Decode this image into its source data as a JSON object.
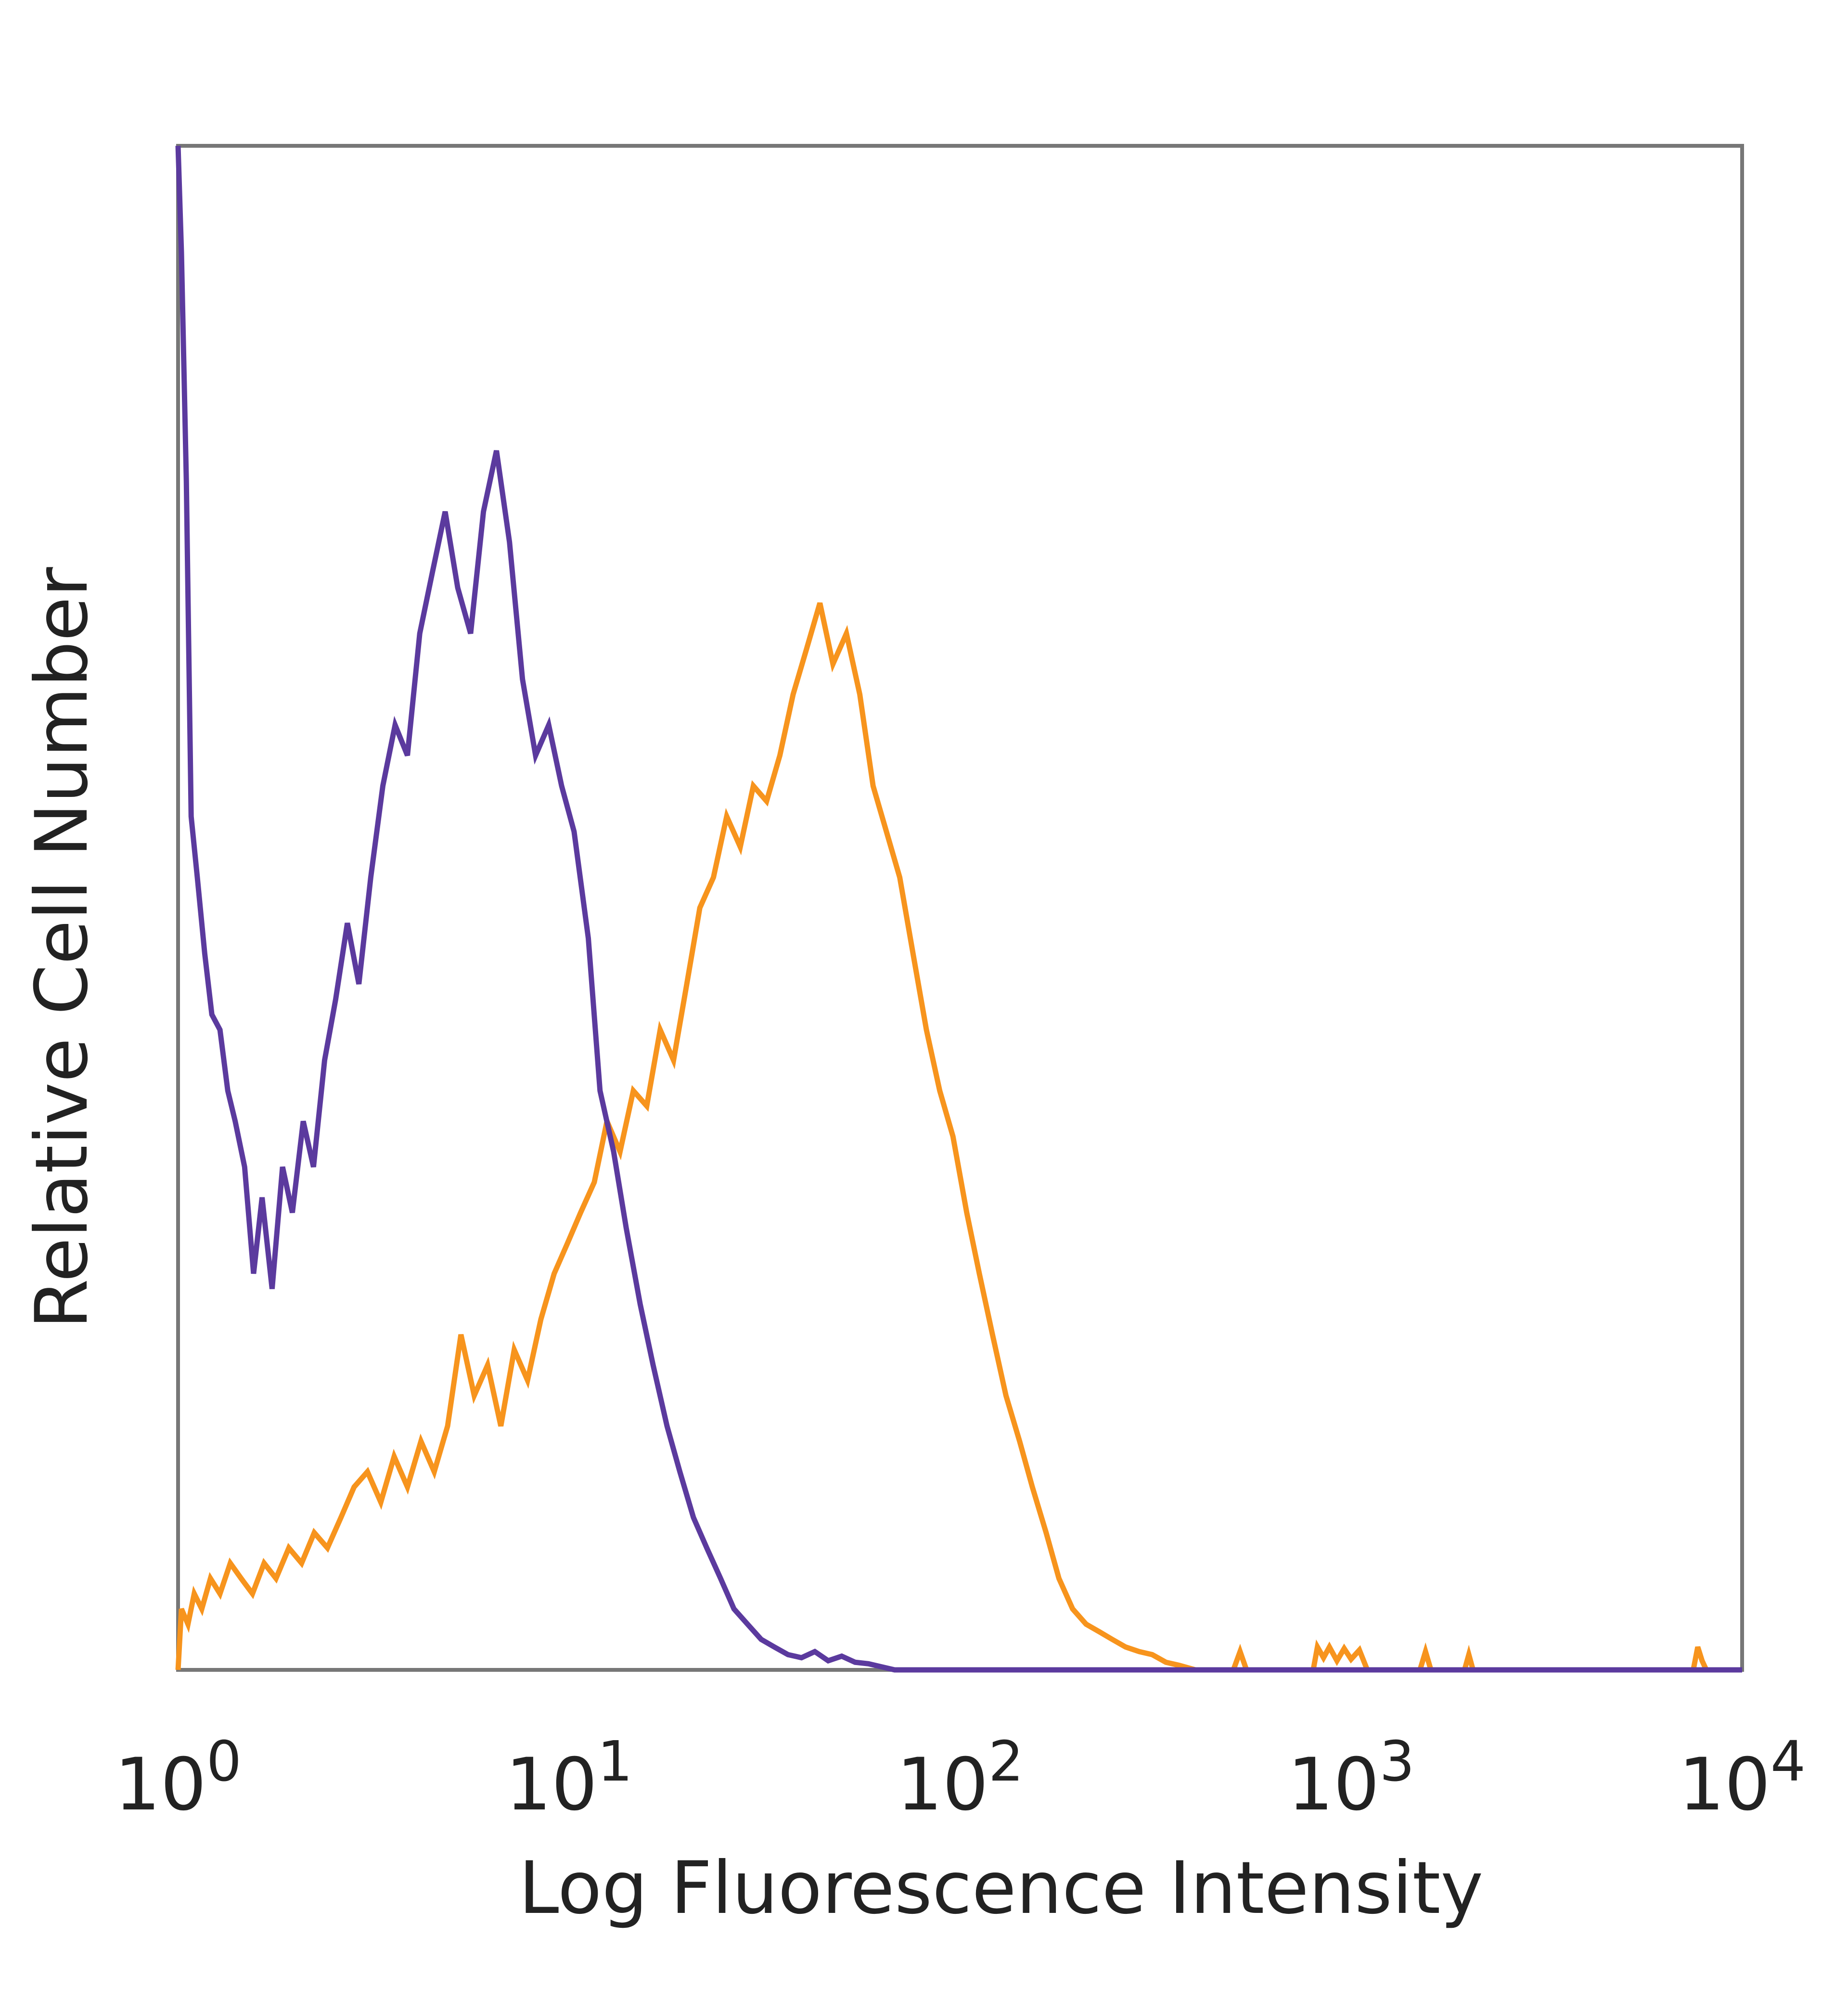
{
  "chart_data": {
    "type": "line",
    "title": "",
    "xlabel": "Log Fluorescence Intensity",
    "ylabel": "Relative Cell Number",
    "x_scale": "log",
    "xlim": [
      1,
      10000
    ],
    "ylim": [
      0,
      100
    ],
    "y_ticks_shown": false,
    "grid": false,
    "legend": "none",
    "x_ticks": [
      {
        "value": 1,
        "base": "10",
        "exp": "0"
      },
      {
        "value": 10,
        "base": "10",
        "exp": "1"
      },
      {
        "value": 100,
        "base": "10",
        "exp": "2"
      },
      {
        "value": 1000,
        "base": "10",
        "exp": "3"
      },
      {
        "value": 10000,
        "base": "10",
        "exp": "4"
      }
    ],
    "series": [
      {
        "color": "#5B3A9E",
        "points": [
          [
            1.0,
            100
          ],
          [
            1.02,
            93
          ],
          [
            1.05,
            78
          ],
          [
            1.08,
            56
          ],
          [
            1.12,
            52
          ],
          [
            1.17,
            47
          ],
          [
            1.22,
            43
          ],
          [
            1.28,
            42
          ],
          [
            1.34,
            38
          ],
          [
            1.4,
            36
          ],
          [
            1.48,
            33
          ],
          [
            1.56,
            26
          ],
          [
            1.64,
            31
          ],
          [
            1.74,
            25
          ],
          [
            1.85,
            33
          ],
          [
            1.96,
            30
          ],
          [
            2.09,
            36
          ],
          [
            2.22,
            33
          ],
          [
            2.37,
            40
          ],
          [
            2.53,
            44
          ],
          [
            2.71,
            49
          ],
          [
            2.9,
            45
          ],
          [
            3.11,
            52
          ],
          [
            3.34,
            58
          ],
          [
            3.59,
            62
          ],
          [
            3.86,
            60
          ],
          [
            4.15,
            68
          ],
          [
            4.47,
            72
          ],
          [
            4.82,
            76
          ],
          [
            5.19,
            71
          ],
          [
            5.6,
            68
          ],
          [
            6.04,
            76
          ],
          [
            6.52,
            80
          ],
          [
            7.04,
            74
          ],
          [
            7.6,
            65
          ],
          [
            8.21,
            60
          ],
          [
            8.87,
            62
          ],
          [
            9.57,
            58
          ],
          [
            10.3,
            55
          ],
          [
            11.2,
            48
          ],
          [
            12.0,
            38
          ],
          [
            13.0,
            34
          ],
          [
            14.0,
            29
          ],
          [
            15.2,
            24
          ],
          [
            16.4,
            20
          ],
          [
            17.8,
            16
          ],
          [
            19.2,
            13
          ],
          [
            20.8,
            10
          ],
          [
            22.5,
            8
          ],
          [
            24.4,
            6
          ],
          [
            26.4,
            4
          ],
          [
            28.6,
            3
          ],
          [
            31.0,
            2
          ],
          [
            33.5,
            1.5
          ],
          [
            36.3,
            1
          ],
          [
            39.3,
            0.8
          ],
          [
            42.5,
            1.2
          ],
          [
            46.0,
            0.6
          ],
          [
            49.8,
            0.9
          ],
          [
            53.9,
            0.5
          ],
          [
            58.3,
            0.4
          ],
          [
            63.0,
            0.2
          ],
          [
            68.0,
            0
          ],
          [
            100,
            0
          ],
          [
            1000,
            0
          ],
          [
            10000,
            0
          ]
        ]
      },
      {
        "color": "#F7941D",
        "points": [
          [
            1.0,
            0
          ],
          [
            1.02,
            4
          ],
          [
            1.06,
            3
          ],
          [
            1.1,
            5
          ],
          [
            1.15,
            4
          ],
          [
            1.21,
            6
          ],
          [
            1.28,
            5
          ],
          [
            1.36,
            7
          ],
          [
            1.45,
            6
          ],
          [
            1.55,
            5
          ],
          [
            1.66,
            7
          ],
          [
            1.78,
            6
          ],
          [
            1.92,
            8
          ],
          [
            2.07,
            7
          ],
          [
            2.23,
            9
          ],
          [
            2.41,
            8
          ],
          [
            2.61,
            10
          ],
          [
            2.82,
            12
          ],
          [
            3.05,
            13
          ],
          [
            3.3,
            11
          ],
          [
            3.57,
            14
          ],
          [
            3.86,
            12
          ],
          [
            4.18,
            15
          ],
          [
            4.52,
            13
          ],
          [
            4.89,
            16
          ],
          [
            5.29,
            22
          ],
          [
            5.72,
            18
          ],
          [
            6.19,
            20
          ],
          [
            6.69,
            16
          ],
          [
            7.24,
            21
          ],
          [
            7.83,
            19
          ],
          [
            8.47,
            23
          ],
          [
            9.16,
            26
          ],
          [
            9.91,
            28
          ],
          [
            10.7,
            30
          ],
          [
            11.6,
            32
          ],
          [
            12.5,
            36
          ],
          [
            13.5,
            34
          ],
          [
            14.6,
            38
          ],
          [
            15.8,
            37
          ],
          [
            17.1,
            42
          ],
          [
            18.5,
            40
          ],
          [
            20.0,
            45
          ],
          [
            21.6,
            50
          ],
          [
            23.4,
            52
          ],
          [
            25.3,
            56
          ],
          [
            27.4,
            54
          ],
          [
            29.6,
            58
          ],
          [
            32.0,
            57
          ],
          [
            34.6,
            60
          ],
          [
            37.4,
            64
          ],
          [
            40.5,
            67
          ],
          [
            43.8,
            70
          ],
          [
            47.3,
            66
          ],
          [
            51.2,
            68
          ],
          [
            55.4,
            64
          ],
          [
            59.9,
            58
          ],
          [
            64.8,
            55
          ],
          [
            70.1,
            52
          ],
          [
            75.8,
            47
          ],
          [
            82.0,
            42
          ],
          [
            88.7,
            38
          ],
          [
            95.9,
            35
          ],
          [
            104,
            30
          ],
          [
            112,
            26
          ],
          [
            121,
            22
          ],
          [
            131,
            18
          ],
          [
            142,
            15
          ],
          [
            153,
            12
          ],
          [
            166,
            9
          ],
          [
            179,
            6
          ],
          [
            194,
            4
          ],
          [
            210,
            3
          ],
          [
            227,
            2.5
          ],
          [
            245,
            2
          ],
          [
            265,
            1.5
          ],
          [
            287,
            1.2
          ],
          [
            310,
            1
          ],
          [
            336,
            0.5
          ],
          [
            363,
            0.3
          ],
          [
            400,
            0
          ],
          [
            500,
            0
          ],
          [
            520,
            1.2
          ],
          [
            540,
            0
          ],
          [
            800,
            0
          ],
          [
            820,
            1.5
          ],
          [
            850,
            0.8
          ],
          [
            880,
            1.5
          ],
          [
            920,
            0.6
          ],
          [
            960,
            1.4
          ],
          [
            1000,
            0.7
          ],
          [
            1050,
            1.3
          ],
          [
            1100,
            0
          ],
          [
            1500,
            0
          ],
          [
            1550,
            1.2
          ],
          [
            1600,
            0
          ],
          [
            1950,
            0
          ],
          [
            2000,
            1.0
          ],
          [
            2050,
            0
          ],
          [
            7500,
            0
          ],
          [
            7700,
            1.5
          ],
          [
            7900,
            0.6
          ],
          [
            8100,
            0
          ],
          [
            10000,
            0
          ]
        ]
      }
    ]
  }
}
